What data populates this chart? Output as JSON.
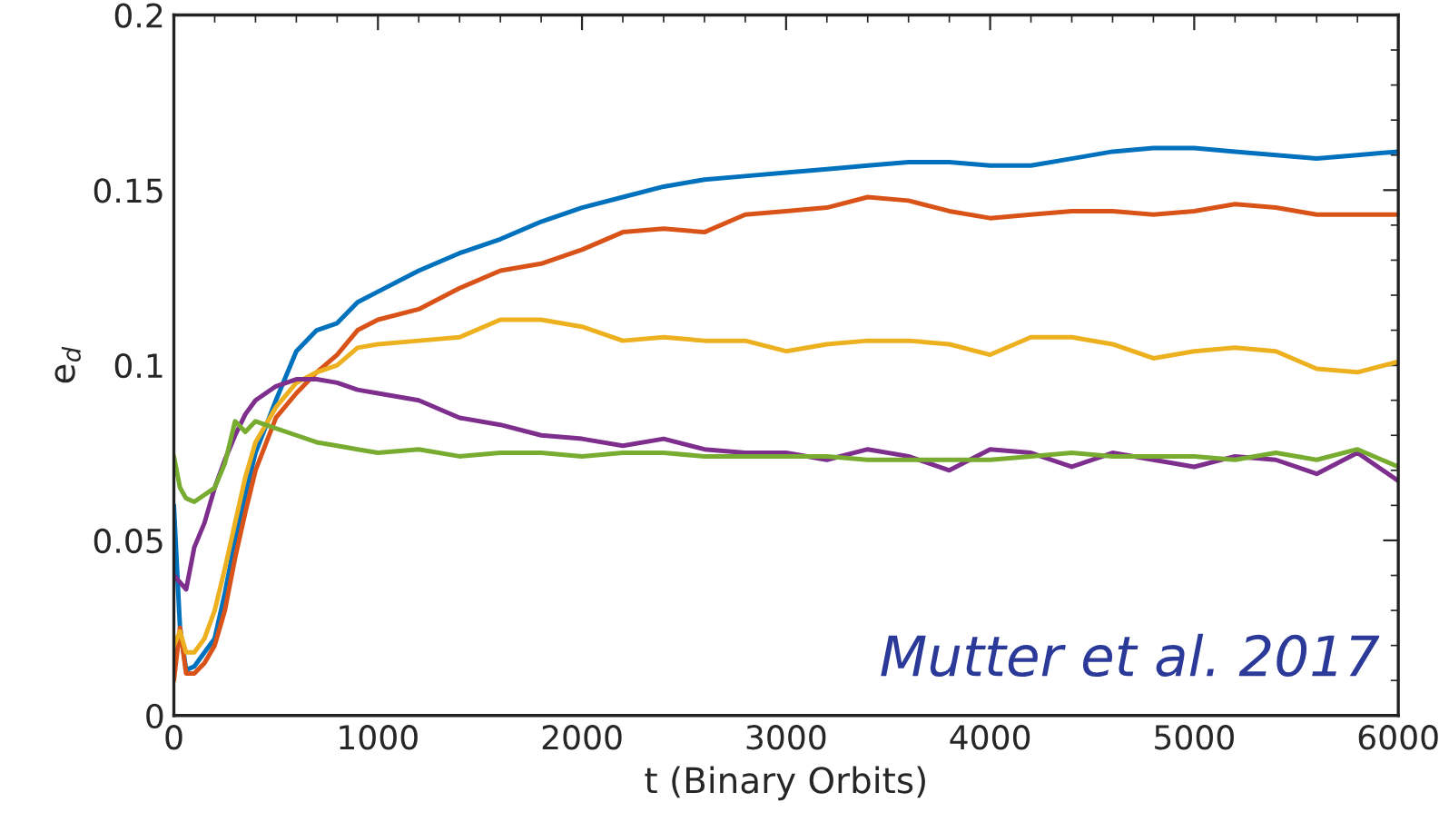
{
  "chart_data": {
    "type": "line",
    "xlabel": "t (Binary Orbits)",
    "ylabel": "e$_{d}$",
    "x": [
      0,
      30,
      60,
      100,
      150,
      200,
      250,
      300,
      350,
      400,
      500,
      600,
      700,
      800,
      900,
      1000,
      1200,
      1400,
      1600,
      1800,
      2000,
      2200,
      2400,
      2600,
      2800,
      3000,
      3200,
      3400,
      3600,
      3800,
      4000,
      4200,
      4400,
      4600,
      4800,
      5000,
      5200,
      5400,
      5600,
      5800,
      6000
    ],
    "series": [
      {
        "color": "#0072bd",
        "values": [
          0.06,
          0.025,
          0.013,
          0.014,
          0.018,
          0.022,
          0.035,
          0.05,
          0.063,
          0.075,
          0.09,
          0.104,
          0.11,
          0.112,
          0.118,
          0.121,
          0.127,
          0.132,
          0.136,
          0.141,
          0.145,
          0.148,
          0.151,
          0.153,
          0.154,
          0.155,
          0.156,
          0.157,
          0.158,
          0.158,
          0.157,
          0.157,
          0.159,
          0.161,
          0.162,
          0.162,
          0.161,
          0.16,
          0.159,
          0.16,
          0.161
        ]
      },
      {
        "color": "#d95319",
        "values": [
          0.01,
          0.025,
          0.012,
          0.012,
          0.015,
          0.02,
          0.03,
          0.045,
          0.058,
          0.07,
          0.085,
          0.092,
          0.098,
          0.103,
          0.11,
          0.113,
          0.116,
          0.122,
          0.127,
          0.129,
          0.133,
          0.138,
          0.139,
          0.138,
          0.143,
          0.144,
          0.145,
          0.148,
          0.147,
          0.144,
          0.142,
          0.143,
          0.144,
          0.144,
          0.143,
          0.144,
          0.146,
          0.145,
          0.143,
          0.143,
          0.143
        ]
      },
      {
        "color": "#edb120",
        "values": [
          0.02,
          0.024,
          0.018,
          0.018,
          0.022,
          0.03,
          0.042,
          0.055,
          0.068,
          0.078,
          0.088,
          0.095,
          0.098,
          0.1,
          0.105,
          0.106,
          0.107,
          0.108,
          0.113,
          0.113,
          0.111,
          0.107,
          0.108,
          0.107,
          0.107,
          0.104,
          0.106,
          0.107,
          0.107,
          0.106,
          0.103,
          0.108,
          0.108,
          0.106,
          0.102,
          0.104,
          0.105,
          0.104,
          0.099,
          0.098,
          0.101
        ]
      },
      {
        "color": "#7e2f8e",
        "values": [
          0.04,
          0.038,
          0.036,
          0.048,
          0.055,
          0.065,
          0.073,
          0.08,
          0.086,
          0.09,
          0.094,
          0.096,
          0.096,
          0.095,
          0.093,
          0.092,
          0.09,
          0.085,
          0.083,
          0.08,
          0.079,
          0.077,
          0.079,
          0.076,
          0.075,
          0.075,
          0.073,
          0.076,
          0.074,
          0.07,
          0.076,
          0.075,
          0.071,
          0.075,
          0.073,
          0.071,
          0.074,
          0.073,
          0.069,
          0.075,
          0.067
        ]
      },
      {
        "color": "#77ac30",
        "values": [
          0.074,
          0.065,
          0.062,
          0.061,
          0.063,
          0.065,
          0.072,
          0.084,
          0.081,
          0.084,
          0.082,
          0.08,
          0.078,
          0.077,
          0.076,
          0.075,
          0.076,
          0.074,
          0.075,
          0.075,
          0.074,
          0.075,
          0.075,
          0.074,
          0.074,
          0.074,
          0.074,
          0.073,
          0.073,
          0.073,
          0.073,
          0.074,
          0.075,
          0.074,
          0.074,
          0.074,
          0.073,
          0.075,
          0.073,
          0.076,
          0.071
        ]
      }
    ],
    "xlim": [
      0,
      6000
    ],
    "xticks": [
      0,
      1000,
      2000,
      3000,
      4000,
      5000,
      6000
    ],
    "ylim": [
      0,
      0.2
    ],
    "yticks": [
      0,
      0.05,
      0.1,
      0.15,
      0.2
    ],
    "annotations": [
      "Mutter et al. 2017"
    ],
    "grid": false,
    "legend": false,
    "line_style": "solid",
    "marker": "none"
  }
}
